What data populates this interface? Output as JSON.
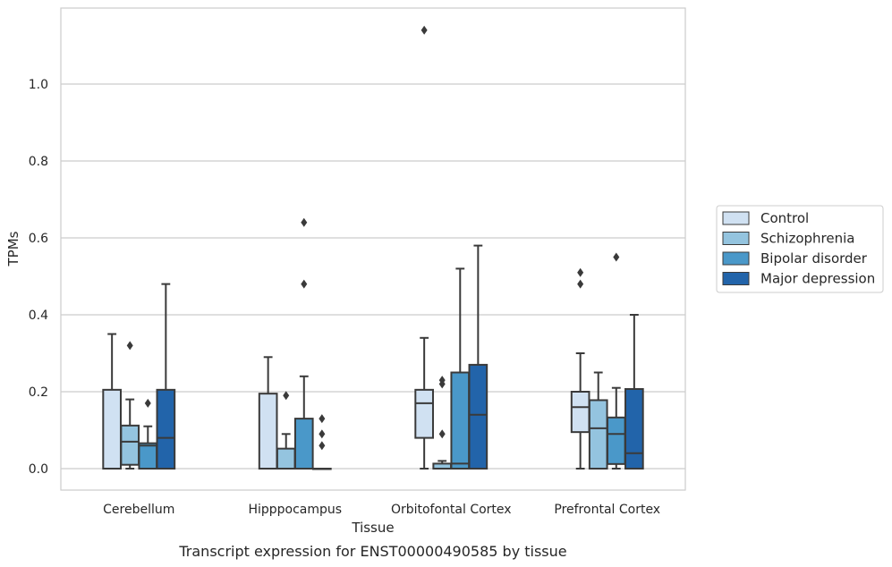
{
  "chart_data": {
    "type": "boxplot",
    "caption": "Transcript expression for ENST00000490585 by tissue",
    "xlabel": "Tissue",
    "ylabel": "TPMs",
    "ylim": [
      -0.055,
      1.204
    ],
    "yticks": [
      "0.0",
      "0.2",
      "0.4",
      "0.6",
      "0.8",
      "1.0"
    ],
    "grid": "horizontal",
    "legend_position": "right",
    "categories": [
      "Cerebellum",
      "Hipppocampus",
      "Orbitofontal Cortex",
      "Prefrontal Cortex"
    ],
    "series": [
      {
        "name": "Control",
        "color": "#d0e1f2",
        "boxes": [
          {
            "whislo": 0.0,
            "q1": 0.0,
            "med": 0.0,
            "q3": 0.205,
            "whishi": 0.35,
            "fliers": []
          },
          {
            "whislo": 0.0,
            "q1": 0.0,
            "med": 0.0,
            "q3": 0.195,
            "whishi": 0.29,
            "fliers": []
          },
          {
            "whislo": 0.0,
            "q1": 0.08,
            "med": 0.17,
            "q3": 0.205,
            "whishi": 0.34,
            "fliers": [
              1.14
            ]
          },
          {
            "whislo": 0.0,
            "q1": 0.095,
            "med": 0.16,
            "q3": 0.2,
            "whishi": 0.3,
            "fliers": [
              0.48,
              0.51
            ]
          }
        ]
      },
      {
        "name": "Schizophrenia",
        "color": "#94c4df",
        "boxes": [
          {
            "whislo": 0.0,
            "q1": 0.01,
            "med": 0.07,
            "q3": 0.112,
            "whishi": 0.18,
            "fliers": [
              0.32
            ]
          },
          {
            "whislo": 0.0,
            "q1": 0.0,
            "med": 0.0,
            "q3": 0.052,
            "whishi": 0.09,
            "fliers": [
              0.19
            ]
          },
          {
            "whislo": 0.0,
            "q1": 0.0,
            "med": 0.0,
            "q3": 0.013,
            "whishi": 0.02,
            "fliers": [
              0.09,
              0.22,
              0.23
            ]
          },
          {
            "whislo": 0.0,
            "q1": 0.0,
            "med": 0.105,
            "q3": 0.178,
            "whishi": 0.25,
            "fliers": []
          }
        ]
      },
      {
        "name": "Bipolar disorder",
        "color": "#4a98c9",
        "boxes": [
          {
            "whislo": 0.0,
            "q1": 0.0,
            "med": 0.06,
            "q3": 0.066,
            "whishi": 0.11,
            "fliers": [
              0.17
            ]
          },
          {
            "whislo": 0.0,
            "q1": 0.0,
            "med": 0.0,
            "q3": 0.13,
            "whishi": 0.24,
            "fliers": [
              0.48,
              0.64
            ]
          },
          {
            "whislo": 0.0,
            "q1": 0.0,
            "med": 0.013,
            "q3": 0.25,
            "whishi": 0.52,
            "fliers": []
          },
          {
            "whislo": 0.0,
            "q1": 0.012,
            "med": 0.09,
            "q3": 0.133,
            "whishi": 0.21,
            "fliers": [
              0.55
            ]
          }
        ]
      },
      {
        "name": "Major depression",
        "color": "#2264aa",
        "boxes": [
          {
            "whislo": 0.0,
            "q1": 0.0,
            "med": 0.08,
            "q3": 0.205,
            "whishi": 0.48,
            "fliers": []
          },
          {
            "whislo": 0.0,
            "q1": 0.0,
            "med": 0.0,
            "q3": 0.0,
            "whishi": 0.0,
            "fliers": [
              0.06,
              0.09,
              0.13
            ]
          },
          {
            "whislo": 0.0,
            "q1": 0.0,
            "med": 0.14,
            "q3": 0.27,
            "whishi": 0.58,
            "fliers": []
          },
          {
            "whislo": 0.0,
            "q1": 0.0,
            "med": 0.04,
            "q3": 0.207,
            "whishi": 0.4,
            "fliers": []
          }
        ]
      }
    ]
  }
}
